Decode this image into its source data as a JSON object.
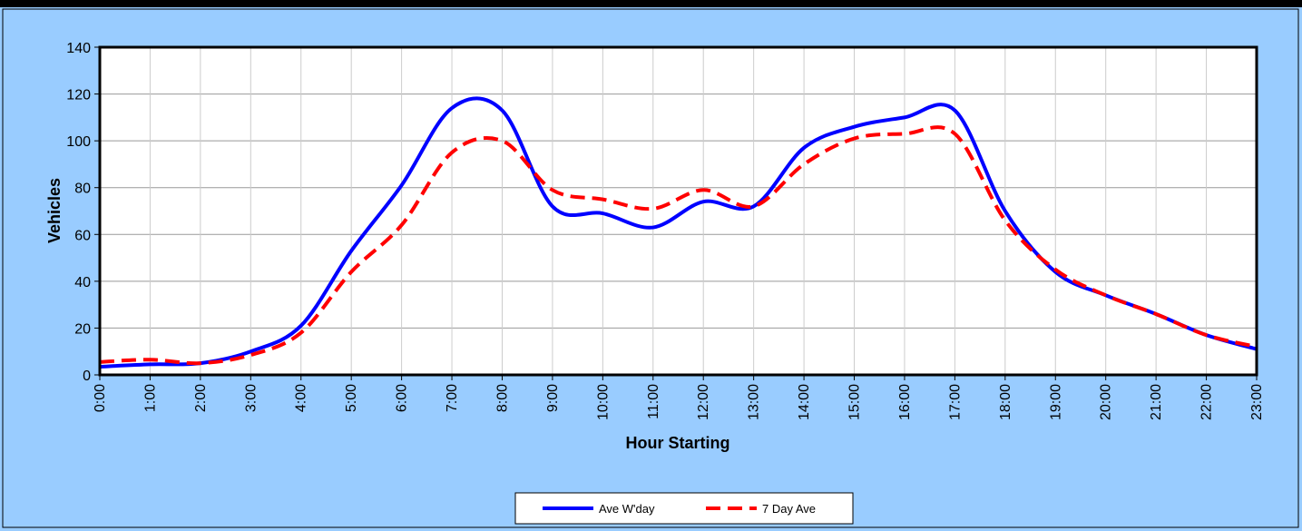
{
  "chart_data": {
    "type": "line",
    "xlabel": "Hour Starting",
    "ylabel": "Vehicles",
    "categories": [
      "0:00",
      "1:00",
      "2:00",
      "3:00",
      "4:00",
      "5:00",
      "6:00",
      "7:00",
      "8:00",
      "9:00",
      "10:00",
      "11:00",
      "12:00",
      "13:00",
      "14:00",
      "15:00",
      "16:00",
      "17:00",
      "18:00",
      "19:00",
      "20:00",
      "21:00",
      "22:00",
      "23:00"
    ],
    "series": [
      {
        "name": "Ave W'day",
        "color": "#0000ff",
        "dash": false,
        "values": [
          3.5,
          4.5,
          5,
          10,
          21,
          53,
          81,
          114,
          113,
          72,
          69,
          63,
          74,
          72,
          97,
          106,
          110,
          113,
          70,
          44,
          34,
          26,
          17,
          11
        ]
      },
      {
        "name": "7 Day Ave",
        "color": "#ff0000",
        "dash": true,
        "values": [
          5.5,
          6.5,
          5,
          8.5,
          18,
          44,
          64,
          95,
          100,
          79,
          75,
          71,
          79,
          72,
          90,
          101,
          103,
          103,
          66,
          45,
          34,
          26,
          17,
          12
        ]
      }
    ],
    "ylim": [
      0,
      140
    ],
    "yticks": [
      0,
      20,
      40,
      60,
      80,
      100,
      120,
      140
    ],
    "grid": true,
    "legend": "bottom"
  }
}
